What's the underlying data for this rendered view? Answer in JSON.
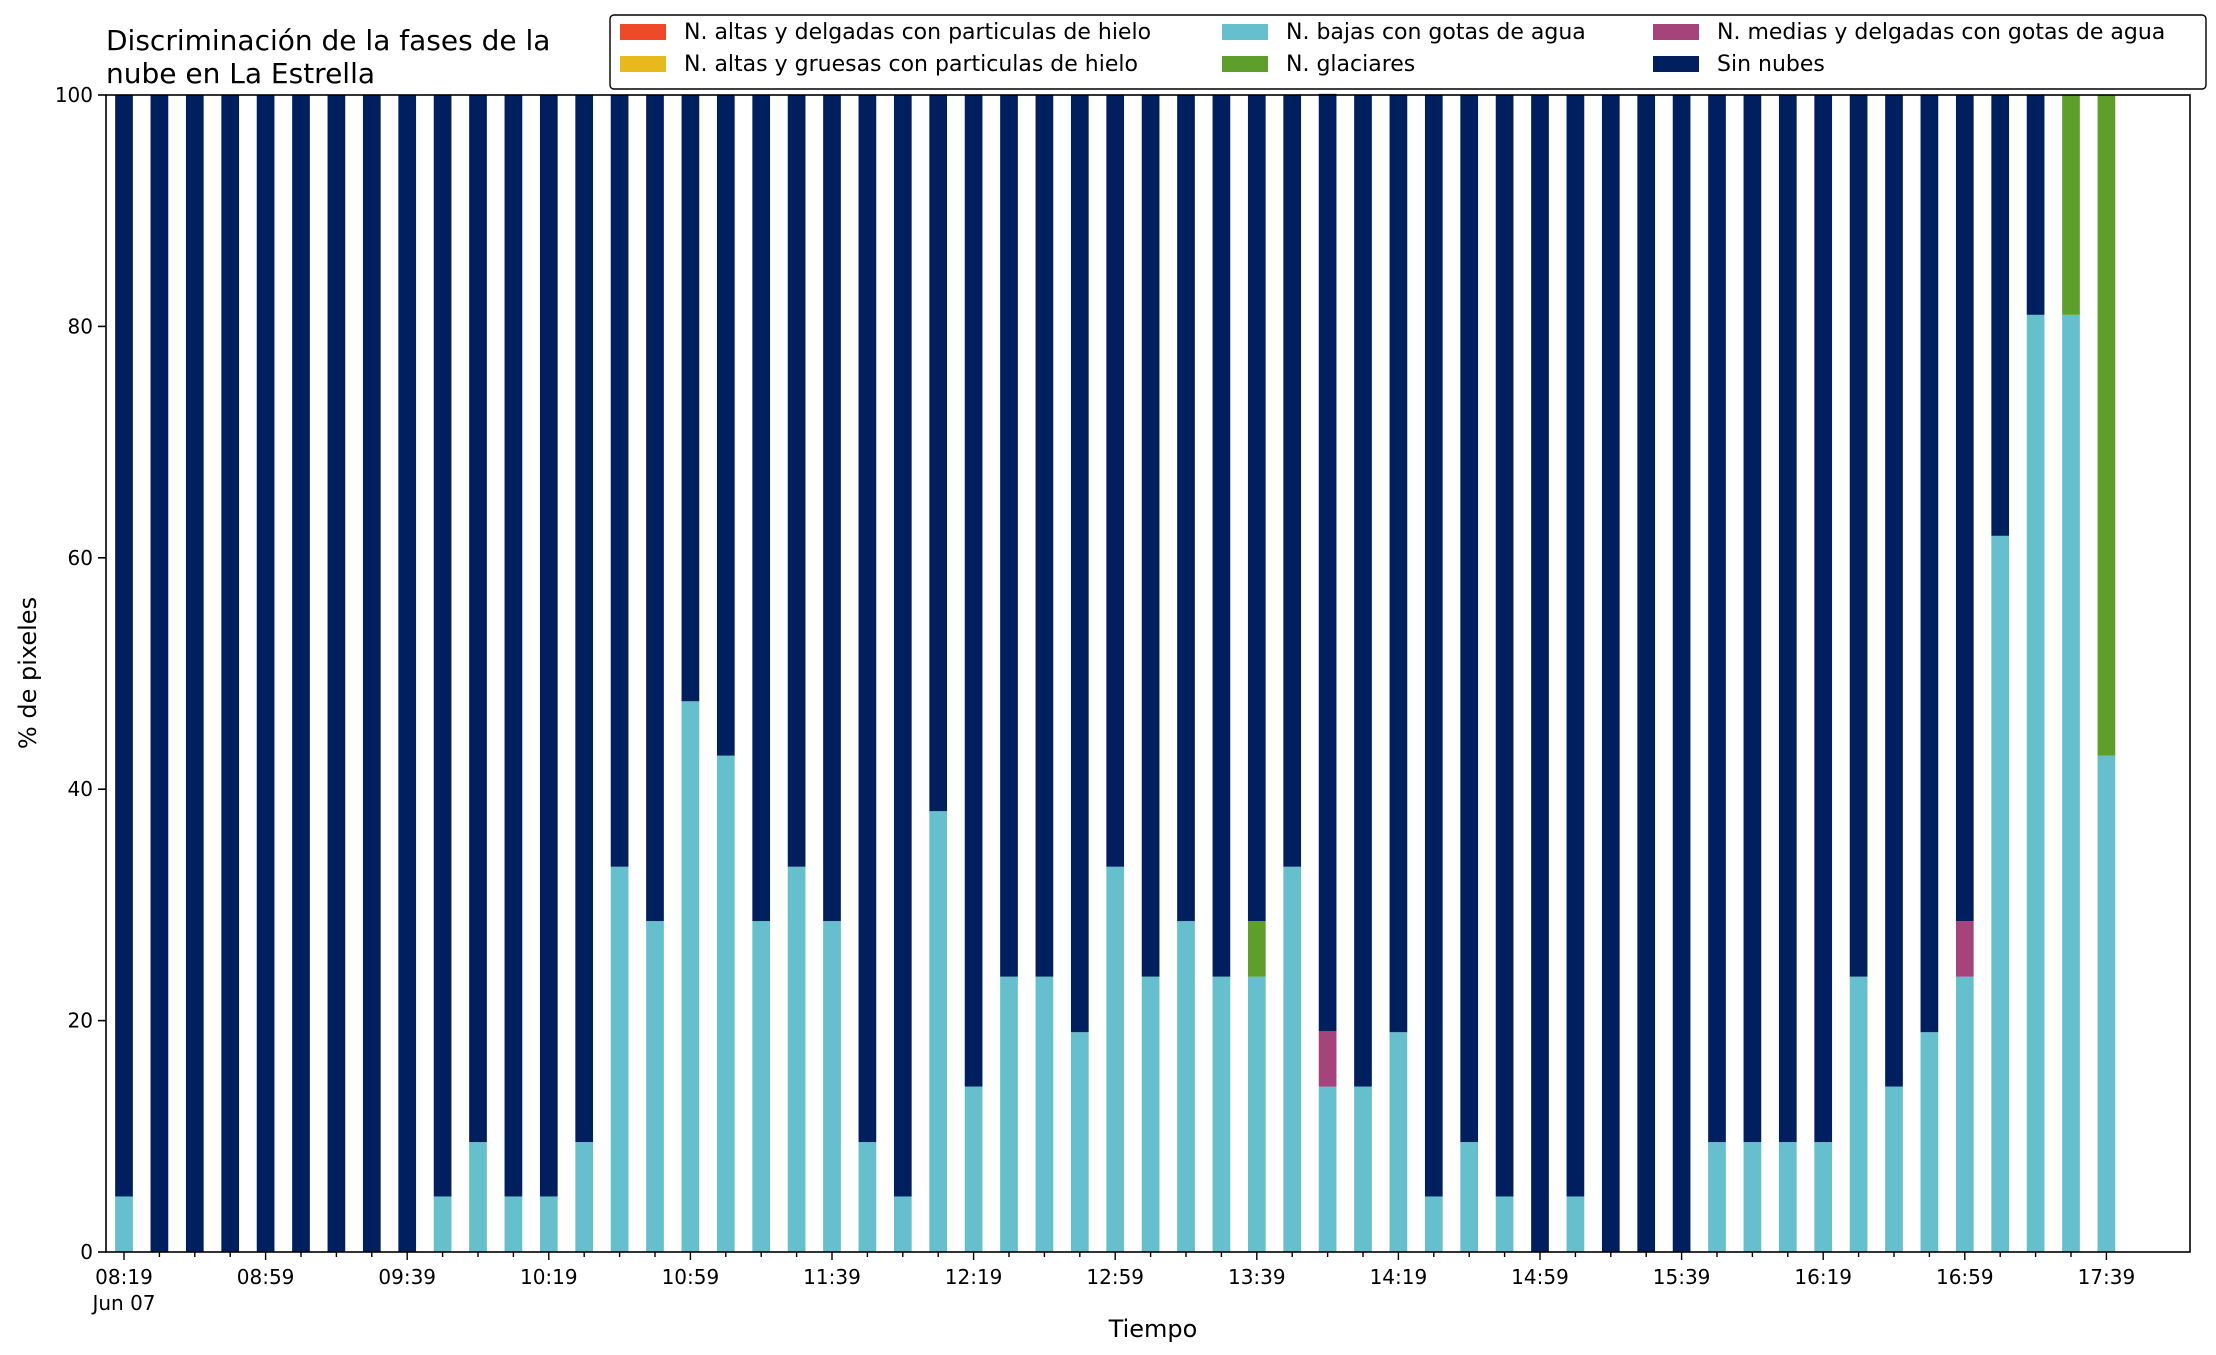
{
  "chart_data": {
    "type": "bar",
    "stacked": true,
    "title_lines": [
      "Discriminación de la fases de la",
      "nube en La Estrella"
    ],
    "xlabel": "Tiempo",
    "ylabel": "% de pixeles",
    "ylim": [
      0,
      100
    ],
    "yticks": [
      0,
      20,
      40,
      60,
      80,
      100
    ],
    "grid": false,
    "legend_position": "top-right",
    "x_start": "08:19",
    "x_date": "Jun 07",
    "x_interval_minutes": 10,
    "x_tick_labels": [
      "08:19",
      "08:59",
      "09:39",
      "10:19",
      "10:59",
      "11:39",
      "12:19",
      "12:59",
      "13:39",
      "14:19",
      "14:59",
      "15:39",
      "16:19",
      "16:59",
      "17:39"
    ],
    "legend": [
      {
        "key": "altas_delgadas",
        "label": "N. altas y delgadas con particulas de hielo",
        "color": "#ee4a2a"
      },
      {
        "key": "altas_gruesas",
        "label": "N. altas y gruesas con particulas de hielo",
        "color": "#e8b91c"
      },
      {
        "key": "bajas",
        "label": "N. bajas con gotas de agua",
        "color": "#66bfcc"
      },
      {
        "key": "glaciares",
        "label": "N. glaciares",
        "color": "#5e9f2c"
      },
      {
        "key": "medias",
        "label": "N. medias y delgadas con gotas de agua",
        "color": "#a4447a"
      },
      {
        "key": "sin_nubes",
        "label": "Sin nubes",
        "color": "#001f5e"
      }
    ],
    "stack_order": [
      "bajas",
      "glaciares",
      "medias",
      "altas_delgadas",
      "altas_gruesas",
      "sin_nubes"
    ],
    "series": {
      "altas_delgadas": [
        0,
        0,
        0,
        0,
        0,
        0,
        0,
        0,
        0,
        0,
        0,
        0,
        0,
        0,
        0,
        0,
        0,
        0,
        0,
        0,
        0,
        0,
        0,
        0,
        0,
        0,
        0,
        0,
        0,
        0,
        0,
        0,
        0,
        0,
        0,
        0,
        0,
        0,
        0,
        0,
        0,
        0,
        0,
        0,
        0,
        0,
        0,
        0,
        0,
        0,
        0,
        0,
        0,
        0,
        0,
        0,
        0,
        0,
        0
      ],
      "altas_gruesas": [
        0,
        0,
        0,
        0,
        0,
        0,
        0,
        0,
        0,
        0,
        0,
        0,
        0,
        0,
        0,
        0,
        0,
        0,
        0,
        0,
        0,
        0,
        0,
        0,
        0,
        0,
        0,
        0,
        0,
        0,
        0,
        0,
        0,
        0,
        0,
        0,
        0,
        0,
        0,
        0,
        0,
        0,
        0,
        0,
        0,
        0,
        0,
        0,
        0,
        0,
        0,
        0,
        0,
        0,
        0,
        0,
        0,
        0,
        0
      ],
      "bajas": [
        4.8,
        0,
        0,
        0,
        0,
        0,
        0,
        0,
        0,
        4.8,
        9.5,
        4.8,
        4.8,
        9.5,
        33.3,
        28.6,
        47.6,
        42.9,
        28.6,
        33.3,
        28.6,
        9.5,
        4.8,
        38.1,
        14.3,
        23.8,
        23.8,
        19.0,
        33.3,
        23.8,
        28.6,
        23.8,
        23.8,
        33.3,
        14.3,
        14.3,
        19.0,
        4.8,
        9.5,
        4.8,
        0,
        4.8,
        0,
        0,
        0,
        9.5,
        9.5,
        9.5,
        9.5,
        23.8,
        14.3,
        19.0,
        23.8,
        61.9,
        81.0,
        81.0,
        42.9
      ],
      "glaciares": [
        0,
        0,
        0,
        0,
        0,
        0,
        0,
        0,
        0,
        0,
        0,
        0,
        0,
        0,
        0,
        0,
        0,
        0,
        0,
        0,
        0,
        0,
        0,
        0,
        0,
        0,
        0,
        0,
        0,
        0,
        0,
        0,
        4.8,
        0,
        0,
        0,
        0,
        0,
        0,
        0,
        0,
        0,
        0,
        0,
        0,
        0,
        0,
        0,
        0,
        0,
        0,
        0,
        0,
        0,
        0,
        19.0,
        57.1
      ],
      "medias": [
        0,
        0,
        0,
        0,
        0,
        0,
        0,
        0,
        0,
        0,
        0,
        0,
        0,
        0,
        0,
        0,
        0,
        0,
        0,
        0,
        0,
        0,
        0,
        0,
        0,
        0,
        0,
        0,
        0,
        0,
        0,
        0,
        0,
        0,
        4.8,
        0,
        0,
        0,
        0,
        0,
        0,
        0,
        0,
        0,
        0,
        0,
        0,
        0,
        0,
        0,
        0,
        0,
        4.8,
        0,
        0,
        0,
        0
      ],
      "sin_nubes": [
        95.2,
        100,
        100,
        100,
        100,
        100,
        100,
        100,
        100,
        95.2,
        90.5,
        95.2,
        95.2,
        90.5,
        66.7,
        71.4,
        52.4,
        57.1,
        71.4,
        66.7,
        71.4,
        90.5,
        95.2,
        61.9,
        85.7,
        76.2,
        76.2,
        81.0,
        66.7,
        76.2,
        71.4,
        76.2,
        71.4,
        66.7,
        81.0,
        85.7,
        81.0,
        95.2,
        90.5,
        95.2,
        100,
        95.2,
        100,
        100,
        100,
        90.5,
        90.5,
        90.5,
        90.5,
        76.2,
        85.7,
        81.0,
        71.4,
        38.1,
        19.0,
        0,
        0
      ]
    }
  }
}
